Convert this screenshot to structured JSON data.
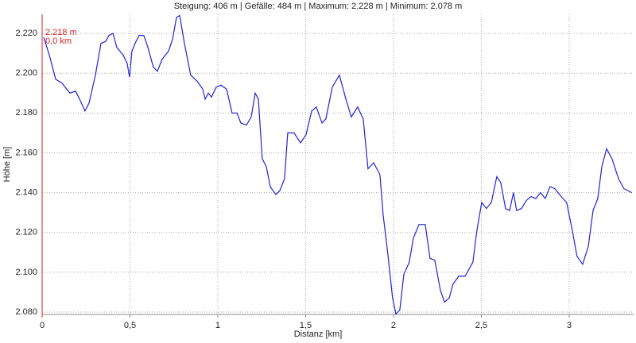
{
  "chart_data": {
    "type": "line",
    "title": "Steigung: 406 m | Gefälle: 484 m | Maximum: 2.228 m | Minimum: 2.078 m",
    "x_label": "Distanz [km]",
    "y_label": "Höhe [m]",
    "cursor": {
      "elevation": "2.218 m",
      "distance": "0,0 km"
    },
    "xlim": [
      0,
      3.367
    ],
    "ylim": [
      2078.8,
      2229.6
    ],
    "xticks": [
      0,
      {
        "value": 0.5,
        "label": "0,5"
      },
      1,
      {
        "value": 1.5,
        "label": "1,5"
      },
      2,
      {
        "value": 2.5,
        "label": "2,5"
      },
      3
    ],
    "yticks": [
      {
        "value": 2080,
        "label": "2.080"
      },
      {
        "value": 2100,
        "label": "2.100"
      },
      {
        "value": 2120,
        "label": "2.120"
      },
      {
        "value": 2140,
        "label": "2.140"
      },
      {
        "value": 2160,
        "label": "2.160"
      },
      {
        "value": 2180,
        "label": "2.180"
      },
      {
        "value": 2200,
        "label": "2.200"
      },
      {
        "value": 2220,
        "label": "2.220"
      }
    ],
    "grid": true,
    "series": [
      {
        "color": "#2222dd",
        "x": [
          0.009,
          0.041,
          0.077,
          0.113,
          0.158,
          0.19,
          0.213,
          0.244,
          0.267,
          0.303,
          0.335,
          0.362,
          0.38,
          0.403,
          0.425,
          0.462,
          0.484,
          0.498,
          0.511,
          0.529,
          0.552,
          0.579,
          0.602,
          0.633,
          0.656,
          0.683,
          0.719,
          0.742,
          0.765,
          0.783,
          0.81,
          0.846,
          0.882,
          0.914,
          0.928,
          0.946,
          0.964,
          0.991,
          1.018,
          1.05,
          1.081,
          1.109,
          1.131,
          1.163,
          1.19,
          1.213,
          1.231,
          1.253,
          1.276,
          1.299,
          1.33,
          1.353,
          1.38,
          1.398,
          1.434,
          1.471,
          1.502,
          1.534,
          1.561,
          1.593,
          1.615,
          1.652,
          1.692,
          1.729,
          1.76,
          1.796,
          1.828,
          1.855,
          1.887,
          1.923,
          1.941,
          1.968,
          1.995,
          2.014,
          2.036,
          2.059,
          2.09,
          2.113,
          2.145,
          2.181,
          2.208,
          2.235,
          2.267,
          2.29,
          2.317,
          2.339,
          2.371,
          2.407,
          2.452,
          2.475,
          2.502,
          2.529,
          2.557,
          2.588,
          2.611,
          2.638,
          2.661,
          2.683,
          2.701,
          2.729,
          2.756,
          2.783,
          2.81,
          2.837,
          2.864,
          2.891,
          2.919,
          2.955,
          2.986,
          3.018,
          3.045,
          3.077,
          3.109,
          3.136,
          3.163,
          3.186,
          3.213,
          3.244,
          3.281,
          3.312,
          3.357
        ],
        "values": [
          2218,
          2209,
          2197,
          2195,
          2190,
          2191,
          2187,
          2181,
          2185,
          2199,
          2215,
          2216,
          2219,
          2220,
          2213,
          2209,
          2205,
          2198,
          2211,
          2215,
          2219,
          2219,
          2213,
          2203,
          2201,
          2207,
          2211,
          2217,
          2228,
          2229,
          2215,
          2199,
          2196,
          2192,
          2187,
          2190,
          2188,
          2193,
          2194,
          2192,
          2180,
          2180,
          2175,
          2174,
          2178,
          2190,
          2187,
          2157,
          2153,
          2143,
          2139,
          2141,
          2147,
          2170,
          2170,
          2165,
          2169,
          2181,
          2183,
          2175,
          2177,
          2193,
          2199,
          2187,
          2178,
          2183,
          2177,
          2152,
          2155,
          2149,
          2129,
          2109,
          2087,
          2079,
          2081,
          2099,
          2105,
          2117,
          2124,
          2124,
          2107,
          2106,
          2091,
          2085,
          2087,
          2094,
          2098,
          2098,
          2105,
          2121,
          2135,
          2132,
          2135,
          2148,
          2145,
          2132,
          2131,
          2140,
          2131,
          2132,
          2136,
          2138,
          2137,
          2140,
          2137,
          2143,
          2142,
          2138,
          2135,
          2121,
          2108,
          2104,
          2113,
          2131,
          2137,
          2153,
          2162,
          2157,
          2147,
          2142,
          2140
        ]
      }
    ]
  }
}
